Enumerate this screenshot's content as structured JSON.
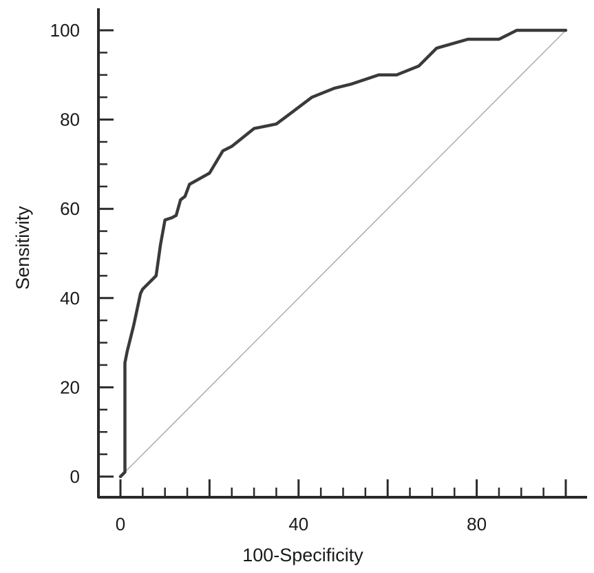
{
  "chart_data": {
    "type": "line",
    "title": "",
    "xlabel": "100-Specificity",
    "ylabel": "Sensitivity",
    "xlim": [
      0,
      100
    ],
    "ylim": [
      0,
      100
    ],
    "x_ticks": [
      0,
      40,
      80
    ],
    "y_ticks": [
      0,
      20,
      40,
      60,
      80,
      100
    ],
    "grid": false,
    "legend": "none",
    "line_color": "#3a3a3a",
    "reference_color": "#999999",
    "series": [
      {
        "x": [
          0,
          1,
          1,
          1.5,
          3,
          4.5,
          5,
          8,
          9,
          10,
          11.5,
          12.5,
          13.5,
          14.5,
          15.5,
          20,
          23,
          25,
          30,
          35,
          37,
          43,
          48,
          52,
          58,
          62,
          67,
          71,
          78,
          85,
          89,
          100
        ],
        "y": [
          0,
          1,
          25.5,
          28,
          34,
          41,
          42,
          45,
          52,
          57.5,
          58,
          58.5,
          62,
          62.8,
          65.5,
          68,
          73,
          74,
          78,
          79,
          80.5,
          85,
          87,
          88,
          90,
          90,
          92,
          96,
          98,
          98,
          100,
          100
        ]
      },
      {
        "x": [
          0,
          100
        ],
        "y": [
          0,
          100
        ]
      }
    ]
  }
}
